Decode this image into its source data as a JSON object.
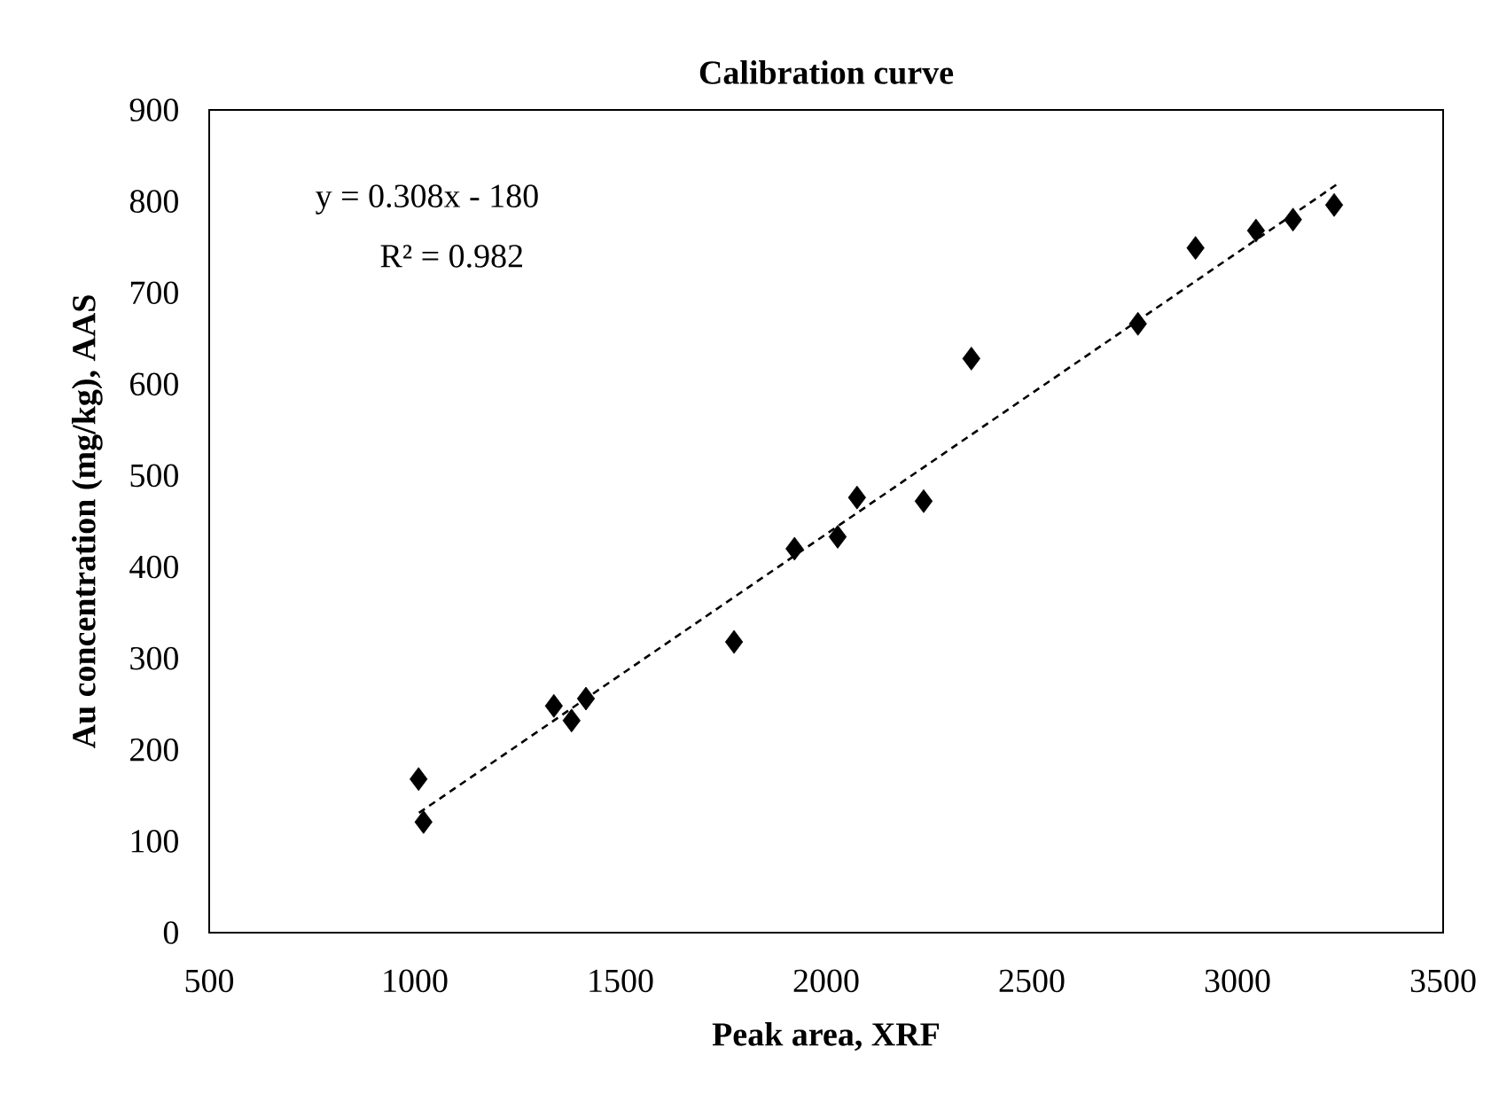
{
  "chart_data": {
    "type": "scatter",
    "title": "Calibration curve",
    "xlabel": "Peak area, XRF",
    "ylabel": "Au concentration (mg/kg),  AAS",
    "annotations": [
      "y = 0.308x - 180",
      "R² = 0.982"
    ],
    "xlim": [
      500,
      3500
    ],
    "xticks": [
      500,
      1000,
      1500,
      2000,
      2500,
      3000,
      3500
    ],
    "ylim": [
      0,
      900
    ],
    "yticks": [
      0,
      100,
      200,
      300,
      400,
      500,
      600,
      700,
      800,
      900
    ],
    "grid": false,
    "series": [
      {
        "color": "#000000",
        "marker": "diamond",
        "x": [
          1009,
          1021,
          1338,
          1381,
          1416,
          1776,
          1923,
          2028,
          2075,
          2237,
          2353,
          2758,
          2898,
          3045,
          3135,
          3235
        ],
        "values": [
          168,
          121,
          248,
          232,
          256,
          318,
          420,
          433,
          476,
          472,
          628,
          666,
          749,
          768,
          780,
          796
        ]
      },
      {
        "type": "line",
        "color": "#000000",
        "marker": "none",
        "line_style": "dashed",
        "x": [
          1010,
          3240
        ],
        "values": [
          131,
          818
        ]
      }
    ]
  }
}
